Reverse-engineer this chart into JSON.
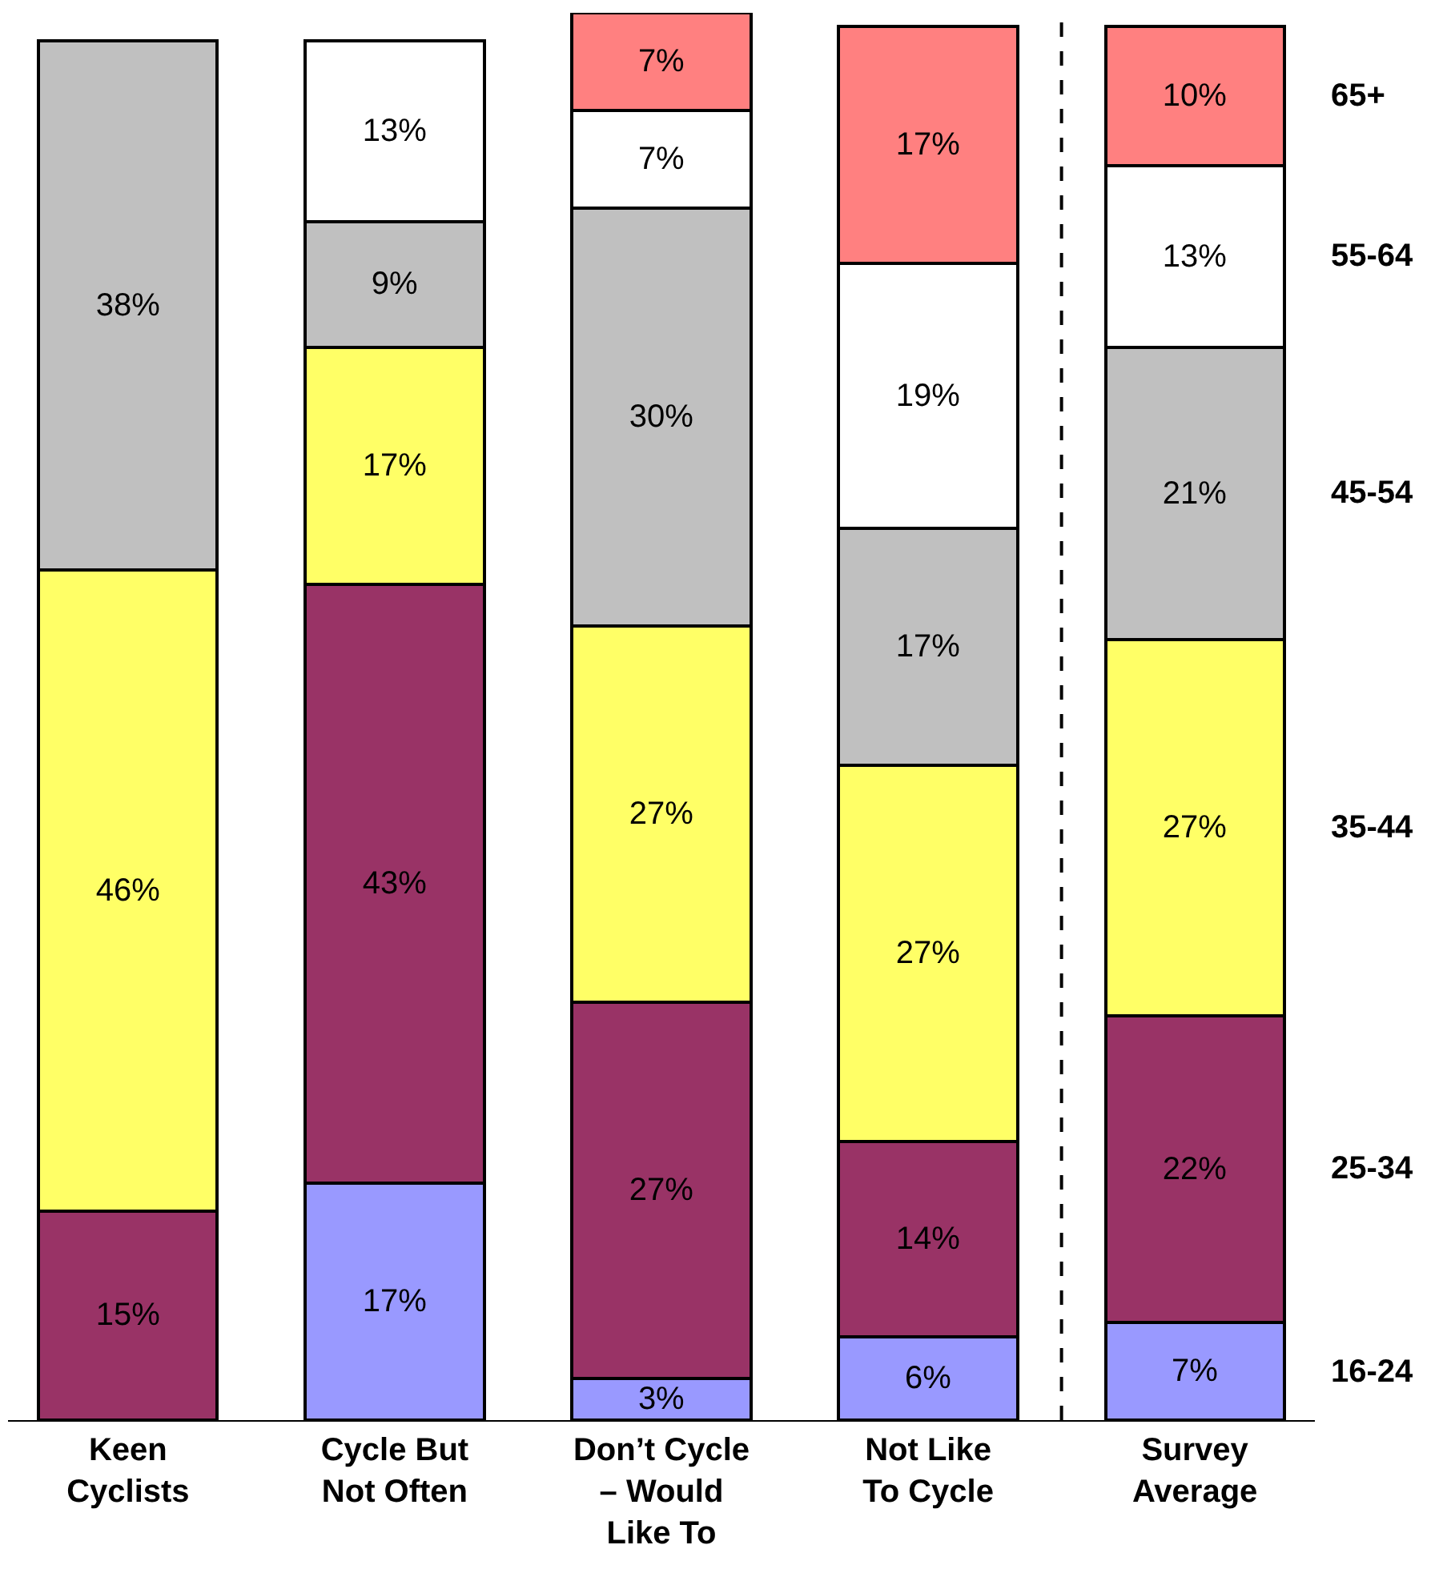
{
  "chart_data": {
    "type": "bar",
    "stacked": true,
    "categories": [
      "Keen\nCyclists",
      "Cycle But\nNot Often",
      "Don’t Cycle\n– Would\nLike To",
      "Not Like\nTo Cycle",
      "Survey\nAverage"
    ],
    "ylim": [
      0,
      101
    ],
    "legend": false,
    "series": [
      {
        "name": "16-24",
        "color": "#9999ff",
        "values": [
          null,
          17,
          3,
          6,
          7
        ],
        "value_labels": [
          null,
          "17%",
          "3%",
          "6%",
          "7%"
        ]
      },
      {
        "name": "25-34",
        "color": "#993366",
        "values": [
          15,
          43,
          27,
          14,
          22
        ],
        "value_labels": [
          "15%",
          "43%",
          "27%",
          "14%",
          "22%"
        ]
      },
      {
        "name": "35-44",
        "color": "#ffff66",
        "values": [
          46,
          17,
          27,
          27,
          27
        ],
        "value_labels": [
          "46%",
          "17%",
          "27%",
          "27%",
          "27%"
        ]
      },
      {
        "name": "45-54",
        "color": "#c0c0c0",
        "values": [
          38,
          9,
          30,
          17,
          21
        ],
        "value_labels": [
          "38%",
          "9%",
          "30%",
          "17%",
          "21%"
        ]
      },
      {
        "name": "55-64",
        "color": "#ffffff",
        "values": [
          null,
          13,
          7,
          19,
          13
        ],
        "value_labels": [
          null,
          "13%",
          "7%",
          "19%",
          "13%"
        ]
      },
      {
        "name": "65+",
        "color": "#ff8080",
        "values": [
          null,
          null,
          7,
          17,
          10
        ],
        "value_labels": [
          null,
          null,
          "7%",
          "17%",
          "10%"
        ]
      }
    ]
  }
}
